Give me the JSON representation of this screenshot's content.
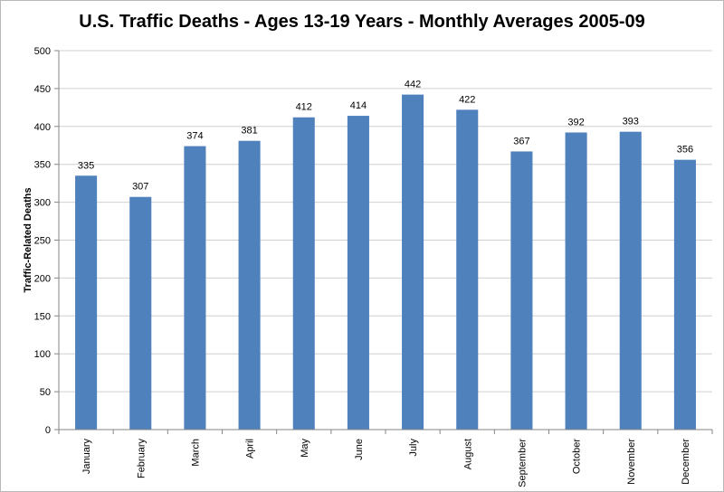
{
  "chart_data": {
    "type": "bar",
    "title": "U.S. Traffic Deaths - Ages 13-19 Years - Monthly Averages 2005-09",
    "xlabel": "",
    "ylabel": "Traffic-Related Deaths",
    "ylim": [
      0,
      500
    ],
    "yticks": [
      0,
      50,
      100,
      150,
      200,
      250,
      300,
      350,
      400,
      450,
      500
    ],
    "gridlines": true,
    "categories": [
      "January",
      "February",
      "March",
      "April",
      "May",
      "June",
      "July",
      "August",
      "September",
      "October",
      "November",
      "December"
    ],
    "values": [
      335,
      307,
      374,
      381,
      412,
      414,
      442,
      422,
      367,
      392,
      393,
      356
    ],
    "bar_color": "#4F81BD",
    "data_labels": true
  }
}
